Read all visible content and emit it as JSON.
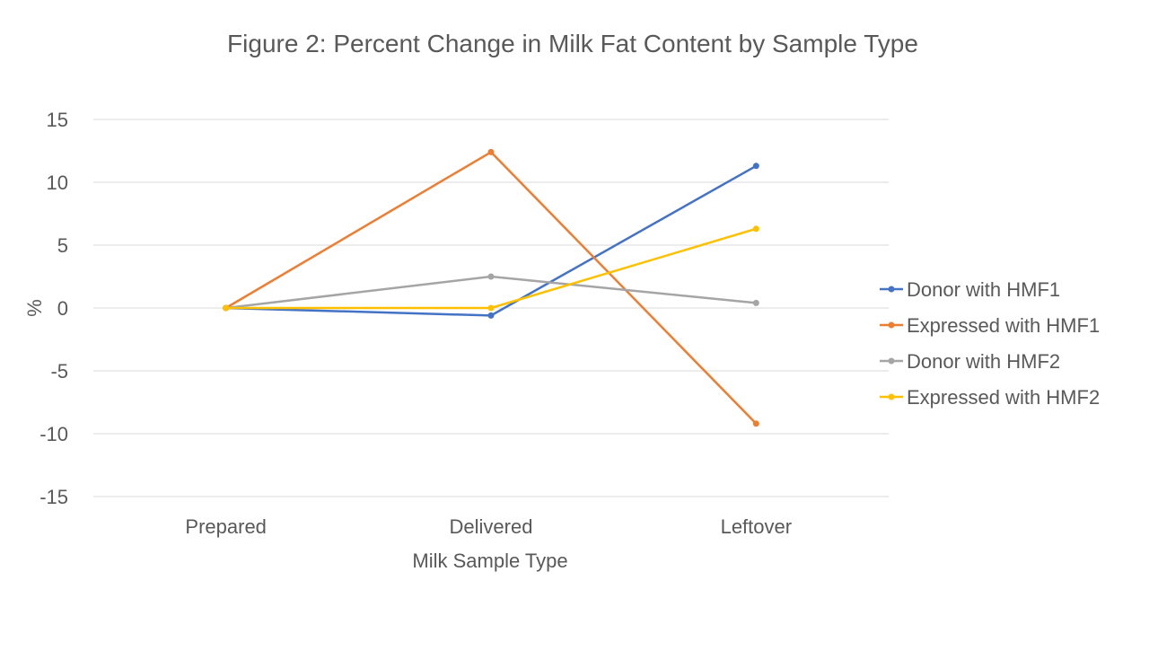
{
  "chart_data": {
    "type": "line",
    "title": "Figure 2: Percent Change in Milk Fat Content by Sample Type",
    "xlabel": "Milk Sample Type",
    "ylabel": "%",
    "categories": [
      "Prepared",
      "Delivered",
      "Leftover"
    ],
    "ylim": [
      -15,
      15
    ],
    "yticks": [
      "15",
      "10",
      "5",
      "0",
      "-5",
      "-10",
      "-15"
    ],
    "ytick_values": [
      15,
      10,
      5,
      0,
      -5,
      -10,
      -15
    ],
    "grid": true,
    "legend_position": "right",
    "series": [
      {
        "name": "Donor with HMF1",
        "values": [
          0,
          -0.6,
          11.3
        ],
        "color": "#4472C4"
      },
      {
        "name": "Expressed with HMF1",
        "values": [
          0,
          12.4,
          -9.2
        ],
        "color": "#ED7D31"
      },
      {
        "name": "Donor with HMF2",
        "values": [
          0,
          2.5,
          0.4
        ],
        "color": "#A5A5A5"
      },
      {
        "name": "Expressed with HMF2",
        "values": [
          0,
          0,
          6.3
        ],
        "color": "#FFC000"
      }
    ],
    "gridline_color": "#D9D9D9",
    "text_color": "#595959"
  }
}
